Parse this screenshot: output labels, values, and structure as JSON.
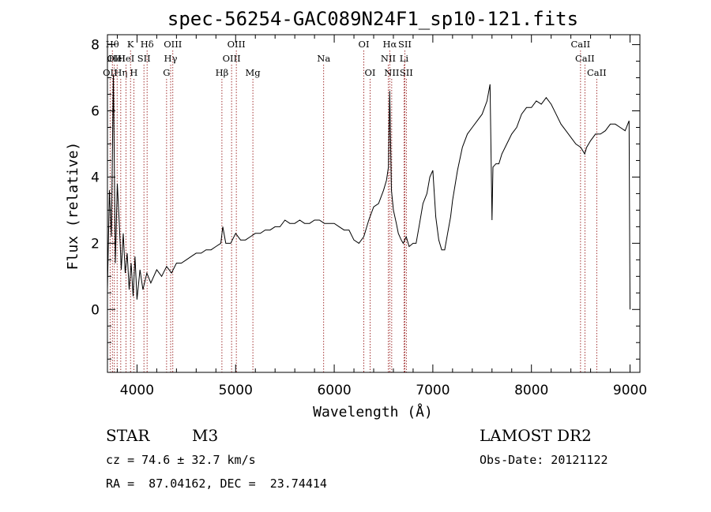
{
  "chart_data": {
    "type": "line",
    "title": "spec-56254-GAC089N24F1_sp10-121.fits",
    "xlabel": "Wavelength (Å)",
    "ylabel": "Flux (relative)",
    "xlim": [
      3700,
      9100
    ],
    "ylim": [
      -1.9,
      8.3
    ],
    "xticks": [
      4000,
      5000,
      6000,
      7000,
      8000,
      9000
    ],
    "yticks": [
      0,
      2,
      4,
      6,
      8
    ],
    "grid": false,
    "series": [
      {
        "x": [
          3700,
          3720,
          3740,
          3760,
          3780,
          3800,
          3820,
          3840,
          3860,
          3880,
          3900,
          3920,
          3940,
          3960,
          3980,
          4000,
          4030,
          4060,
          4100,
          4140,
          4200,
          4250,
          4300,
          4350,
          4400,
          4450,
          4500,
          4550,
          4600,
          4650,
          4700,
          4750,
          4800,
          4850,
          4870,
          4900,
          4950,
          5000,
          5050,
          5100,
          5150,
          5200,
          5250,
          5300,
          5350,
          5400,
          5450,
          5500,
          5550,
          5600,
          5650,
          5700,
          5750,
          5800,
          5850,
          5900,
          5950,
          6000,
          6050,
          6100,
          6150,
          6200,
          6250,
          6300,
          6350,
          6400,
          6450,
          6500,
          6530,
          6550,
          6563,
          6580,
          6600,
          6630,
          6650,
          6680,
          6700,
          6730,
          6760,
          6800,
          6830,
          6860,
          6900,
          6940,
          6970,
          7000,
          7030,
          7060,
          7090,
          7120,
          7150,
          7180,
          7200,
          7250,
          7300,
          7350,
          7400,
          7450,
          7500,
          7550,
          7580,
          7600,
          7610,
          7640,
          7670,
          7700,
          7750,
          7800,
          7850,
          7900,
          7950,
          8000,
          8050,
          8100,
          8150,
          8200,
          8250,
          8300,
          8350,
          8400,
          8450,
          8500,
          8540,
          8560,
          8600,
          8650,
          8700,
          8750,
          8800,
          8850,
          8900,
          8950,
          8990,
          9000
        ],
        "y": [
          0.6,
          3.6,
          2.2,
          7.1,
          1.4,
          3.8,
          2.6,
          1.2,
          2.3,
          1.1,
          1.7,
          0.6,
          1.4,
          0.4,
          1.6,
          0.3,
          1.2,
          0.6,
          1.1,
          0.8,
          1.2,
          1.0,
          1.3,
          1.1,
          1.4,
          1.4,
          1.5,
          1.6,
          1.7,
          1.7,
          1.8,
          1.8,
          1.9,
          2.0,
          2.5,
          2.0,
          2.0,
          2.3,
          2.1,
          2.1,
          2.2,
          2.3,
          2.3,
          2.4,
          2.4,
          2.5,
          2.5,
          2.7,
          2.6,
          2.6,
          2.7,
          2.6,
          2.6,
          2.7,
          2.7,
          2.6,
          2.6,
          2.6,
          2.5,
          2.4,
          2.4,
          2.1,
          2.0,
          2.2,
          2.7,
          3.1,
          3.2,
          3.6,
          3.9,
          4.3,
          6.6,
          3.6,
          3.0,
          2.6,
          2.3,
          2.1,
          2.0,
          2.2,
          1.9,
          2.0,
          2.0,
          2.5,
          3.2,
          3.5,
          4.0,
          4.2,
          2.8,
          2.1,
          1.8,
          1.8,
          2.3,
          2.8,
          3.3,
          4.2,
          4.9,
          5.3,
          5.5,
          5.7,
          5.9,
          6.3,
          6.8,
          2.7,
          4.3,
          4.4,
          4.4,
          4.7,
          5.0,
          5.3,
          5.5,
          5.9,
          6.1,
          6.1,
          6.3,
          6.2,
          6.4,
          6.2,
          5.9,
          5.6,
          5.4,
          5.2,
          5.0,
          4.9,
          4.7,
          4.9,
          5.1,
          5.3,
          5.3,
          5.4,
          5.6,
          5.6,
          5.5,
          5.4,
          5.7,
          0.0
        ]
      }
    ],
    "line_markers": [
      {
        "x": 3727,
        "row": 2,
        "label": "OII"
      },
      {
        "x": 3750,
        "row": 0,
        "label": "Hθ"
      },
      {
        "x": 3770,
        "row": 1,
        "label": "OII"
      },
      {
        "x": 3798,
        "row": 1,
        "label": "HeI"
      },
      {
        "x": 3835,
        "row": 2,
        "label": "Hη"
      },
      {
        "x": 3889,
        "row": 1,
        "label": "HeI"
      },
      {
        "x": 3934,
        "row": 0,
        "label": "K"
      },
      {
        "x": 3968,
        "row": 2,
        "label": "H"
      },
      {
        "x": 4070,
        "row": 1,
        "label": "SII"
      },
      {
        "x": 4102,
        "row": 0,
        "label": "Hδ"
      },
      {
        "x": 4300,
        "row": 2,
        "label": "G"
      },
      {
        "x": 4341,
        "row": 1,
        "label": "Hγ"
      },
      {
        "x": 4363,
        "row": 0,
        "label": "OIII"
      },
      {
        "x": 4861,
        "row": 2,
        "label": "Hβ"
      },
      {
        "x": 4959,
        "row": 1,
        "label": "OIII"
      },
      {
        "x": 5007,
        "row": 0,
        "label": "OIII"
      },
      {
        "x": 5175,
        "row": 2,
        "label": "Mg"
      },
      {
        "x": 5893,
        "row": 1,
        "label": "Na"
      },
      {
        "x": 6300,
        "row": 0,
        "label": "OI"
      },
      {
        "x": 6364,
        "row": 2,
        "label": "OI"
      },
      {
        "x": 6548,
        "row": 1,
        "label": "NII"
      },
      {
        "x": 6563,
        "row": 0,
        "label": "Hα"
      },
      {
        "x": 6583,
        "row": 2,
        "label": "NII"
      },
      {
        "x": 6708,
        "row": 1,
        "label": "Li"
      },
      {
        "x": 6716,
        "row": 0,
        "label": "SII"
      },
      {
        "x": 6731,
        "row": 2,
        "label": "SII"
      },
      {
        "x": 8498,
        "row": 0,
        "label": "CaII"
      },
      {
        "x": 8542,
        "row": 1,
        "label": "CaII"
      },
      {
        "x": 8662,
        "row": 2,
        "label": "CaII"
      }
    ]
  },
  "info": {
    "object_class": "STAR",
    "subclass": "M3",
    "survey": "LAMOST DR2",
    "cz": "cz = 74.6 ± 32.7 km/s",
    "obs_date": "Obs-Date: 20121122",
    "coords": "RA =  87.04162, DEC =  23.74414"
  }
}
